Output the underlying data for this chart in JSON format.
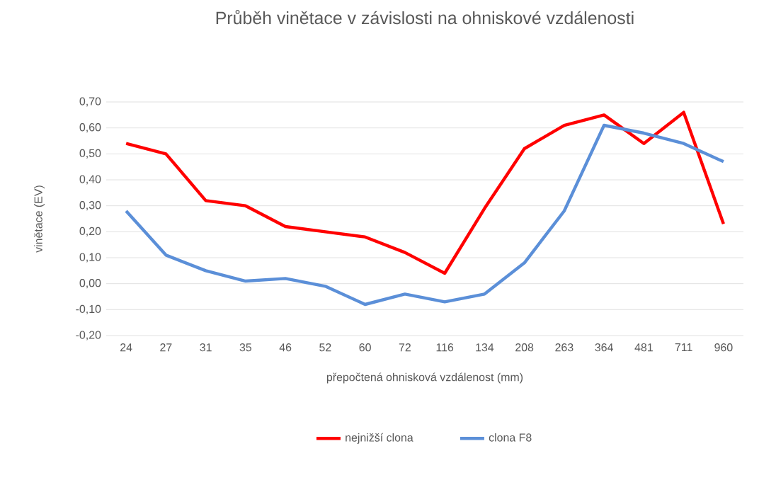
{
  "chart_data": {
    "type": "line",
    "title": "Průběh vinětace v závislosti na ohniskové vzdálenosti",
    "xlabel": "přepočtená ohnisková vzdálenost (mm)",
    "ylabel": "vinětace (EV)",
    "categories": [
      "24",
      "27",
      "31",
      "35",
      "46",
      "52",
      "60",
      "72",
      "116",
      "134",
      "208",
      "263",
      "364",
      "481",
      "711",
      "960"
    ],
    "series": [
      {
        "name": "nejnižší clona",
        "color": "#ff0000",
        "values": [
          0.54,
          0.5,
          0.32,
          0.3,
          0.22,
          0.2,
          0.18,
          0.12,
          0.04,
          0.29,
          0.52,
          0.61,
          0.65,
          0.54,
          0.66,
          0.23
        ]
      },
      {
        "name": "clona F8",
        "color": "#5b8fd8",
        "values": [
          0.28,
          0.11,
          0.05,
          0.01,
          0.02,
          -0.01,
          -0.08,
          -0.04,
          -0.07,
          -0.04,
          0.08,
          0.28,
          0.61,
          0.58,
          0.54,
          0.47
        ]
      }
    ],
    "ylim": [
      -0.2,
      0.7
    ],
    "yticks": [
      {
        "value": -0.2,
        "label": "-0,20"
      },
      {
        "value": -0.1,
        "label": "-0,10"
      },
      {
        "value": 0,
        "label": "0,00"
      },
      {
        "value": 0.1,
        "label": "0,10"
      },
      {
        "value": 0.2,
        "label": "0,20"
      },
      {
        "value": 0.3,
        "label": "0,30"
      },
      {
        "value": 0.4,
        "label": "0,40"
      },
      {
        "value": 0.5,
        "label": "0,50"
      },
      {
        "value": 0.6,
        "label": "0,60"
      },
      {
        "value": 0.7,
        "label": "0,70"
      }
    ],
    "grid": "y",
    "legend": "bottom",
    "marker": "none",
    "line_style": "solid"
  }
}
